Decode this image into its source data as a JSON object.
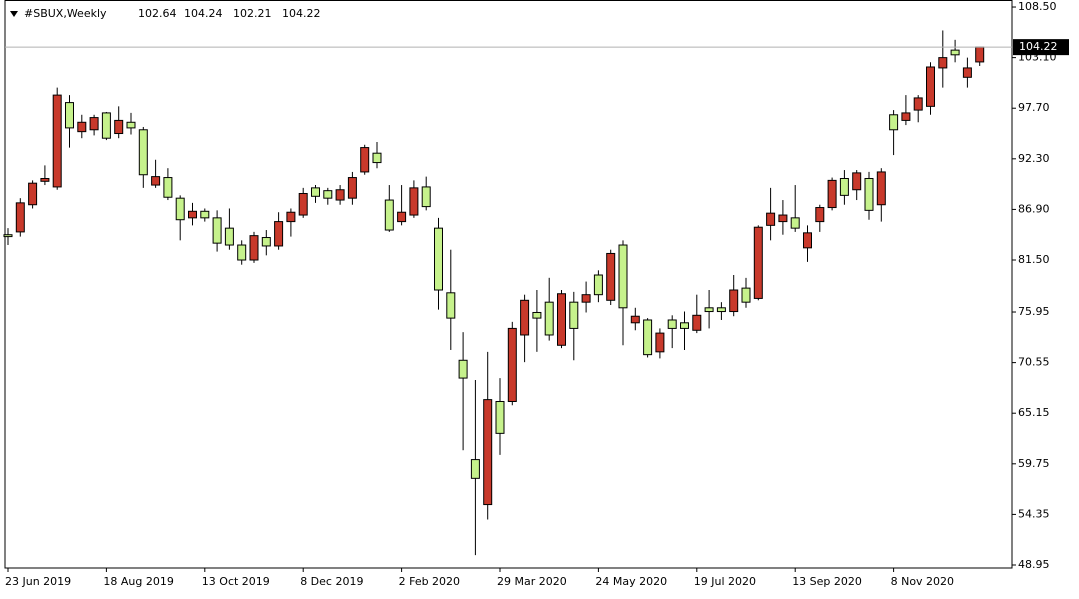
{
  "chart_data": {
    "type": "candlestick",
    "title": "#SBUX,Weekly",
    "categories": [
      "23 Jun 2019",
      null,
      null,
      null,
      null,
      null,
      null,
      null,
      "18 Aug 2019",
      null,
      null,
      null,
      null,
      null,
      null,
      null,
      "13 Oct 2019",
      null,
      null,
      null,
      null,
      null,
      null,
      null,
      "8 Dec 2019",
      null,
      null,
      null,
      null,
      null,
      null,
      null,
      "2 Feb 2020",
      null,
      null,
      null,
      null,
      null,
      null,
      null,
      "29 Mar 2020",
      null,
      null,
      null,
      null,
      null,
      null,
      null,
      "24 May 2020",
      null,
      null,
      null,
      null,
      null,
      null,
      null,
      "19 Jul 2020",
      null,
      null,
      null,
      null,
      null,
      null,
      null,
      "13 Sep 2020",
      null,
      null,
      null,
      null,
      null,
      null,
      null,
      "8 Nov 2020",
      null,
      null,
      null,
      null,
      null,
      null,
      null
    ],
    "open": [
      84.2,
      84.5,
      87.4,
      89.9,
      89.3,
      98.3,
      95.2,
      95.4,
      97.2,
      95.0,
      96.2,
      95.4,
      89.5,
      90.3,
      88.1,
      86.0,
      86.7,
      86.0,
      84.9,
      83.1,
      81.5,
      83.9,
      83.0,
      85.6,
      86.3,
      89.2,
      88.9,
      87.9,
      88.1,
      90.9,
      92.9,
      87.9,
      85.6,
      86.3,
      89.3,
      84.9,
      78.0,
      70.8,
      60.2,
      55.4,
      66.4,
      66.4,
      73.5,
      75.9,
      77.0,
      72.4,
      77.0,
      77.0,
      79.9,
      77.2,
      83.1,
      74.8,
      75.1,
      71.7,
      75.1,
      74.8,
      74.0,
      76.4,
      76.4,
      76.0,
      78.5,
      77.4,
      85.2,
      85.6,
      86.0,
      82.8,
      85.6,
      87.1,
      90.2,
      89.0,
      90.2,
      87.4,
      97.0,
      96.4,
      97.5,
      97.9,
      102.0,
      103.9,
      101.0,
      102.64
    ],
    "high": [
      84.9,
      88.1,
      90.0,
      91.6,
      99.9,
      99.1,
      97.0,
      97.0,
      97.3,
      97.9,
      97.2,
      95.7,
      92.2,
      91.3,
      88.4,
      87.6,
      87.0,
      86.8,
      87.0,
      83.6,
      84.5,
      84.7,
      86.6,
      87.0,
      89.2,
      89.5,
      89.2,
      89.5,
      90.9,
      93.8,
      94.1,
      89.5,
      89.5,
      90.0,
      90.4,
      86.0,
      82.6,
      73.8,
      68.7,
      71.7,
      68.9,
      74.9,
      77.8,
      78.3,
      79.6,
      78.3,
      78.1,
      79.2,
      80.4,
      82.6,
      83.6,
      76.4,
      75.3,
      74.2,
      75.6,
      76.0,
      77.8,
      78.3,
      77.0,
      79.9,
      79.6,
      85.2,
      89.2,
      87.9,
      89.5,
      85.2,
      87.4,
      90.3,
      91.1,
      91.1,
      90.9,
      91.3,
      97.5,
      99.1,
      99.1,
      102.6,
      106.0,
      105.0,
      103.1,
      104.24
    ],
    "low": [
      83.1,
      84.0,
      87.0,
      89.5,
      89.0,
      93.5,
      94.5,
      94.8,
      94.3,
      94.5,
      94.9,
      89.2,
      89.2,
      87.9,
      83.6,
      85.2,
      85.6,
      82.4,
      82.6,
      81.0,
      81.2,
      82.0,
      82.6,
      84.0,
      86.0,
      87.6,
      87.4,
      87.4,
      87.4,
      90.6,
      91.3,
      84.5,
      85.2,
      86.0,
      86.8,
      76.2,
      71.9,
      61.2,
      50.0,
      53.8,
      60.7,
      66.0,
      70.6,
      71.7,
      72.9,
      72.1,
      70.8,
      75.9,
      77.0,
      76.7,
      72.4,
      74.0,
      71.1,
      71.0,
      72.1,
      71.9,
      73.7,
      74.2,
      75.1,
      75.5,
      76.4,
      77.2,
      83.6,
      84.2,
      84.5,
      81.3,
      84.5,
      86.8,
      87.4,
      87.9,
      85.8,
      85.6,
      92.7,
      95.9,
      96.2,
      97.0,
      99.9,
      102.6,
      99.9,
      102.21
    ],
    "close": [
      84.0,
      87.6,
      89.7,
      90.2,
      99.1,
      95.6,
      96.2,
      96.7,
      94.5,
      96.4,
      95.6,
      90.6,
      90.4,
      88.2,
      85.8,
      86.7,
      86.0,
      83.3,
      83.1,
      81.5,
      84.1,
      83.0,
      85.6,
      86.6,
      88.6,
      88.3,
      88.1,
      89.0,
      90.3,
      93.5,
      91.9,
      84.7,
      86.6,
      89.2,
      87.2,
      78.3,
      75.3,
      68.9,
      58.2,
      66.6,
      63.0,
      74.2,
      77.2,
      75.3,
      73.5,
      77.9,
      74.2,
      77.8,
      77.8,
      82.2,
      76.4,
      75.5,
      71.4,
      73.7,
      74.2,
      74.2,
      75.6,
      76.0,
      76.0,
      78.3,
      77.0,
      85.0,
      86.5,
      86.3,
      84.9,
      84.4,
      87.1,
      90.0,
      88.4,
      90.8,
      86.8,
      90.9,
      95.4,
      97.2,
      98.8,
      102.1,
      103.1,
      103.4,
      102.0,
      104.22
    ],
    "up_color": "#c8392b",
    "down_color": "#c6f28c",
    "ylim": [
      48.63,
      109.25
    ],
    "yticks": [
      {
        "value": 108.5,
        "label": "108.50"
      },
      {
        "value": 103.1,
        "label": "103.10"
      },
      {
        "value": 97.7,
        "label": "97.70"
      },
      {
        "value": 92.3,
        "label": "92.30"
      },
      {
        "value": 86.9,
        "label": "86.90"
      },
      {
        "value": 81.5,
        "label": "81.50"
      },
      {
        "value": 75.95,
        "label": "75.95"
      },
      {
        "value": 70.55,
        "label": "70.55"
      },
      {
        "value": 65.15,
        "label": "65.15"
      },
      {
        "value": 59.75,
        "label": "59.75"
      },
      {
        "value": 54.35,
        "label": "54.35"
      },
      {
        "value": 48.95,
        "label": "48.95"
      }
    ],
    "grid": false
  }
}
